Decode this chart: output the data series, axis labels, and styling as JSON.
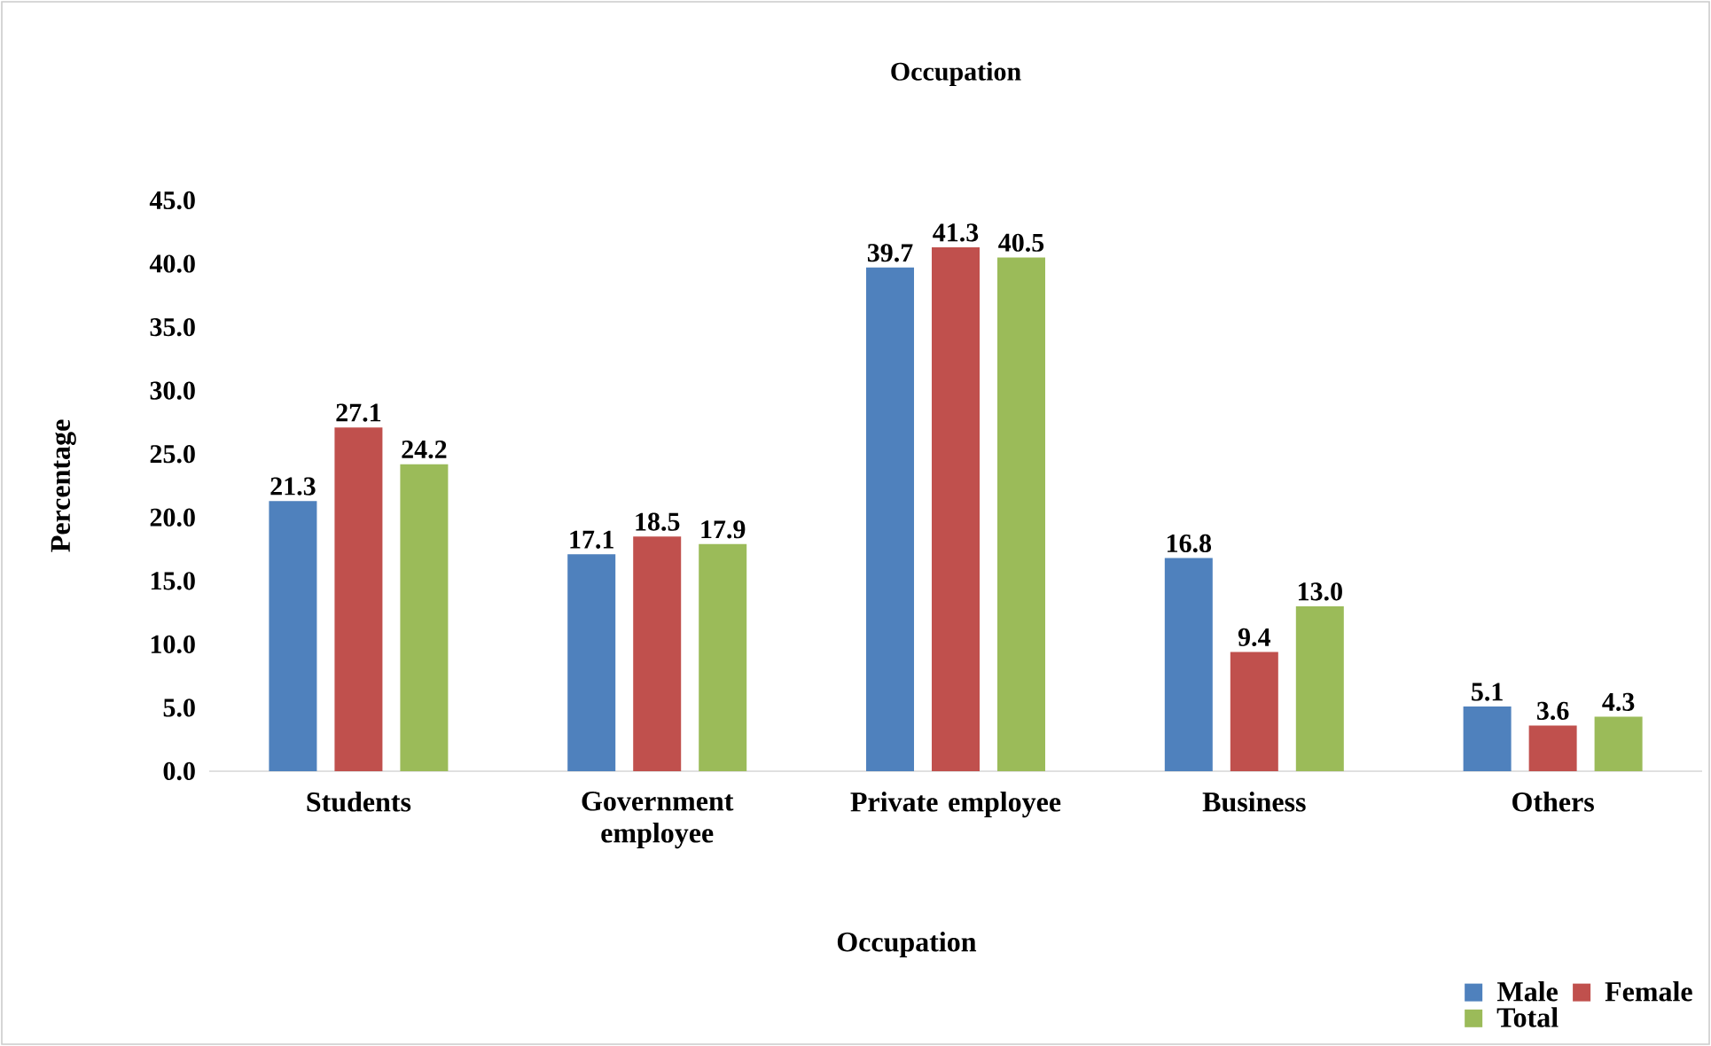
{
  "chart_data": {
    "type": "bar",
    "title": "Occupation",
    "xlabel": "Occupation",
    "ylabel": "Percentage",
    "categories": [
      "Students",
      "Government employee",
      "Private employee",
      "Business",
      "Others"
    ],
    "series": [
      {
        "name": "Male",
        "color": "#4f81bd",
        "values": [
          21.3,
          17.1,
          39.7,
          16.8,
          5.1
        ],
        "value_labels": [
          "21.3",
          "17.1",
          "39.7",
          "16.8",
          "5.1"
        ]
      },
      {
        "name": "Female",
        "color": "#c0504d",
        "values": [
          27.1,
          18.5,
          41.3,
          9.4,
          3.6
        ],
        "value_labels": [
          "27.1",
          "18.5",
          "41.3",
          "9.4",
          "3.6"
        ]
      },
      {
        "name": "Total",
        "color": "#9bbb59",
        "values": [
          24.2,
          17.9,
          40.5,
          13.0,
          4.3
        ],
        "value_labels": [
          "24.2",
          "17.9",
          "40.5",
          "13.0",
          "4.3"
        ]
      }
    ],
    "ylim": [
      0,
      45
    ],
    "yticks": [
      {
        "value": 0,
        "label": "0.0"
      },
      {
        "value": 5,
        "label": "5.0"
      },
      {
        "value": 10,
        "label": "10.0"
      },
      {
        "value": 15,
        "label": "15.0"
      },
      {
        "value": 20,
        "label": "20.0"
      },
      {
        "value": 25,
        "label": "25.0"
      },
      {
        "value": 30,
        "label": "30.0"
      },
      {
        "value": 35,
        "label": "35.0"
      },
      {
        "value": 40,
        "label": "40.0"
      },
      {
        "value": 45,
        "label": "45.0"
      }
    ],
    "legend": "bottom right",
    "grid": false
  }
}
